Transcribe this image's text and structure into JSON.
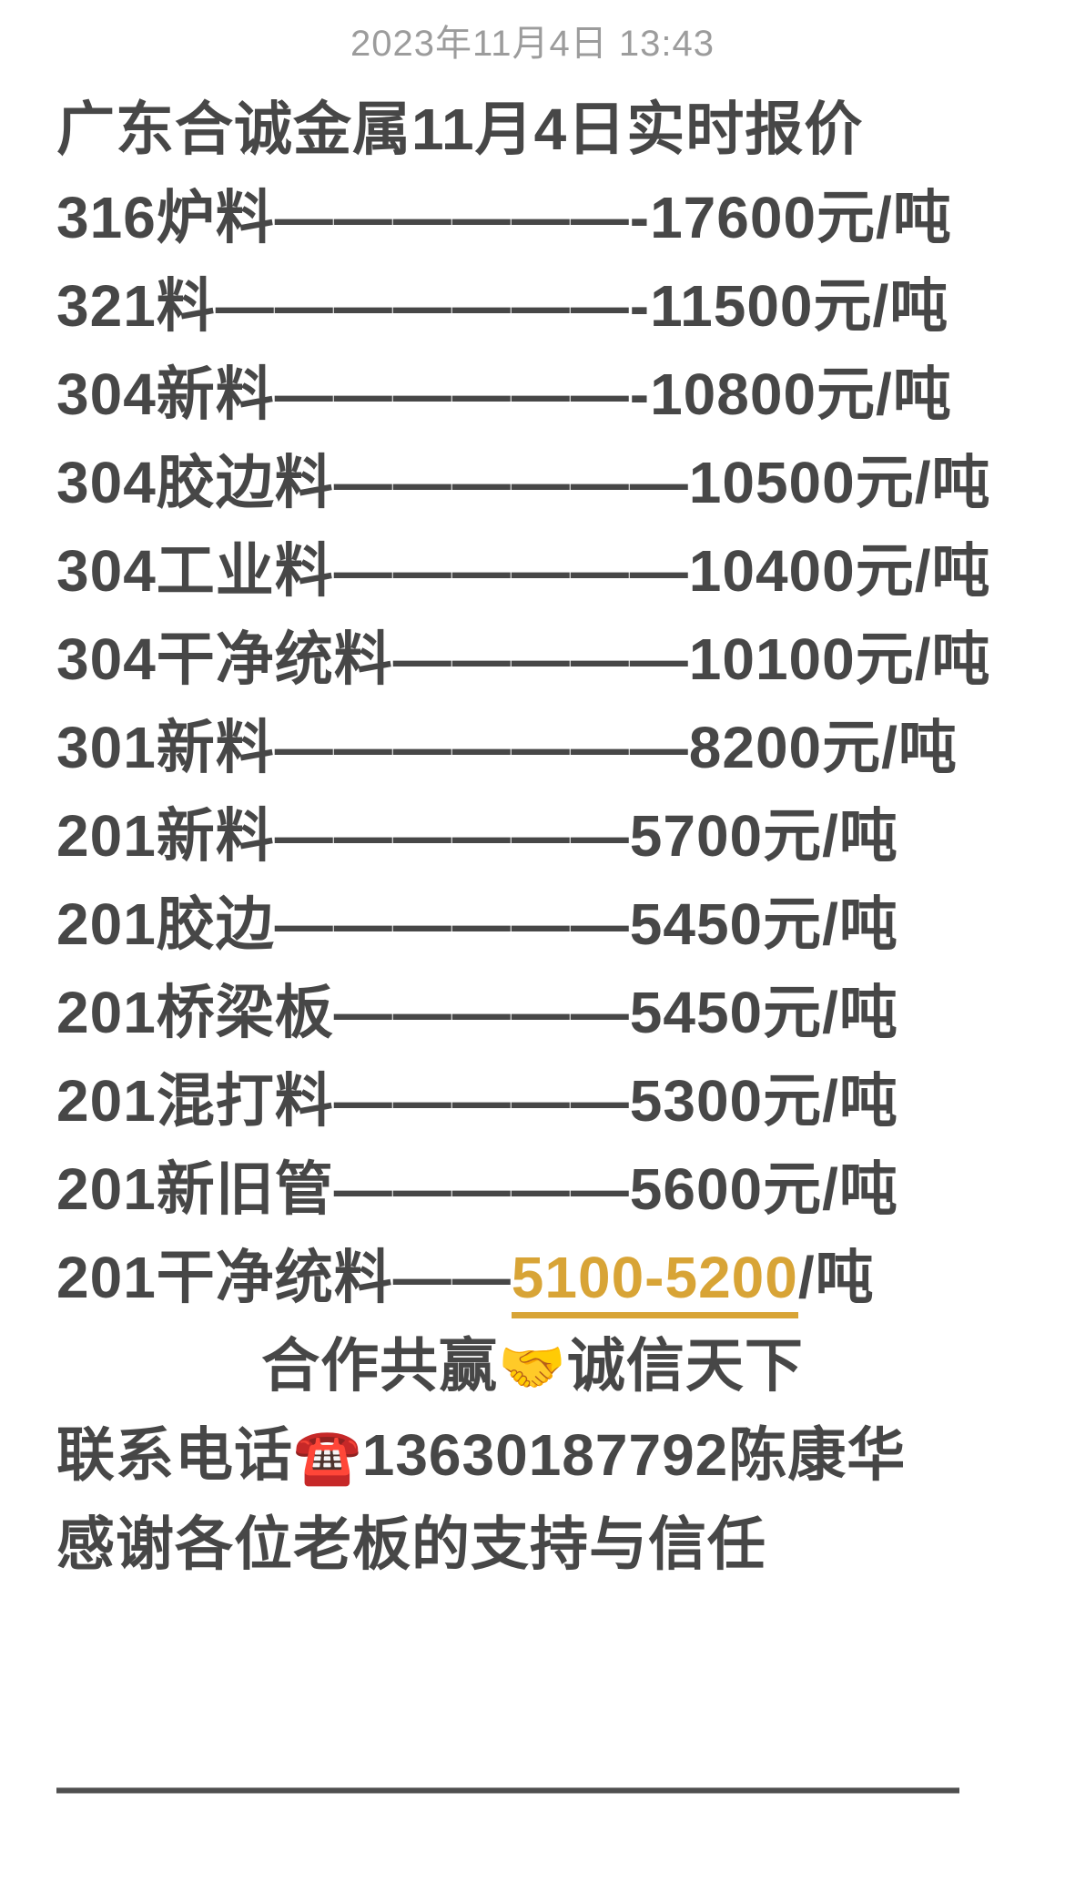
{
  "timestamp": "2023年11月4日 13:43",
  "message": {
    "title": "广东合诚金属11月4日实时报价",
    "price_lines": [
      "316炉料——————-17600元/吨",
      "321料———————-11500元/吨",
      "304新料——————-10800元/吨",
      "304胶边料——————10500元/吨",
      "304工业料——————10400元/吨",
      "304干净统料—————10100元/吨",
      "301新料———————8200元/吨",
      "201新料——————5700元/吨",
      "201胶边——————5450元/吨",
      "201桥梁板—————5450元/吨",
      "201混打料—————5300元/吨",
      "201新旧管—————5600元/吨"
    ],
    "special_line": {
      "prefix": "201干净统料——",
      "highlight": "5100-5200",
      "suffix": "/吨"
    },
    "cooperation_line": {
      "prefix": "合作共赢",
      "icon": "🤝",
      "suffix": "诚信天下"
    },
    "contact_line": {
      "prefix": "联系电话",
      "icon": "☎️",
      "number": "13630187792",
      "name": "陈康华"
    },
    "thanks_line": "感谢各位老板的支持与信任"
  },
  "divider": "————————————————",
  "colors": {
    "text": "#474747",
    "muted_timestamp": "#9c9c9c",
    "highlight_gold": "#d8a436",
    "background": "#ffffff"
  }
}
